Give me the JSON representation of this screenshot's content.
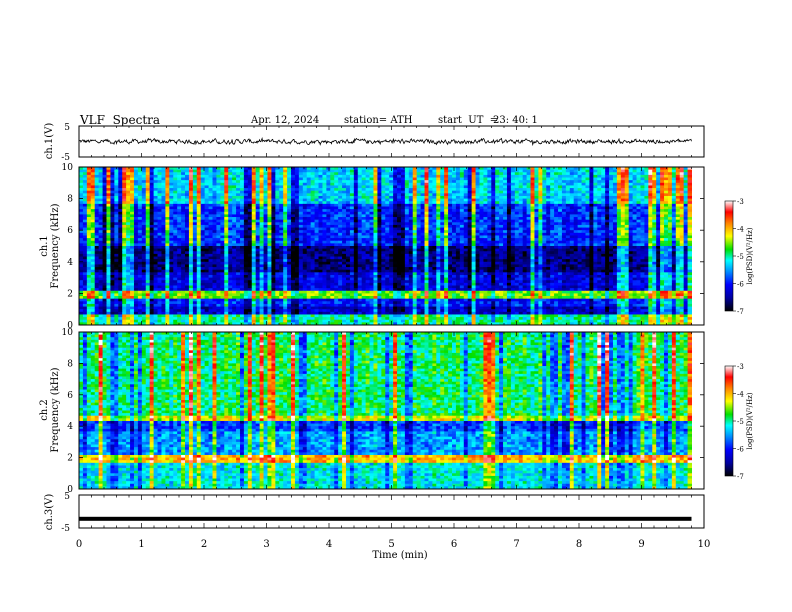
{
  "header": {
    "title": "VLF  Spectra",
    "date": "Apr. 12, 2024",
    "station": "station= ATH",
    "start_label": "start  UT  =",
    "start_time": "23: 40: 1"
  },
  "colors": {
    "colormap": [
      "#000000",
      "#0000a0",
      "#0000ff",
      "#0090ff",
      "#00ffff",
      "#00e000",
      "#ffff00",
      "#ff8000",
      "#ff0000",
      "#ffffff"
    ],
    "waveform": "#000000",
    "axes": "#000000"
  },
  "chart_data": [
    {
      "type": "line",
      "panel": "ch1-waveform",
      "ylabel": "ch.1(V)",
      "ylim": [
        -5,
        5
      ],
      "yticks": [
        "5",
        "-5"
      ],
      "x_range": [
        0,
        9.8
      ],
      "description_value_range": [
        -1,
        1
      ],
      "grid": false
    },
    {
      "type": "heatmap",
      "panel": "ch1-spectrogram",
      "channel_label": "ch.1",
      "ylabel": "Frequency  (kHz)",
      "ylim": [
        0,
        10
      ],
      "yticks": [
        "0",
        "2",
        "4",
        "6",
        "8",
        "10"
      ],
      "x_range": [
        0,
        9.8
      ],
      "noise_bands_khz": [
        {
          "from": 0,
          "to": 0.7,
          "level": -5.0
        },
        {
          "from": 0.7,
          "to": 1.1,
          "level": -6.3
        },
        {
          "from": 1.1,
          "to": 1.7,
          "level": -6.0
        },
        {
          "from": 1.7,
          "to": 2.1,
          "level": -4.6
        },
        {
          "from": 2.1,
          "to": 3.4,
          "level": -6.2
        },
        {
          "from": 3.4,
          "to": 5.0,
          "level": -6.6
        },
        {
          "from": 5.0,
          "to": 7.6,
          "level": -5.9
        },
        {
          "from": 7.6,
          "to": 10,
          "level": -5.3
        }
      ],
      "colorbar": {
        "label": "log(PSD)(V²/Hz)",
        "min": -7,
        "max": -3,
        "ticks": [
          "-3",
          "-4",
          "-5",
          "-6",
          "-7"
        ]
      }
    },
    {
      "type": "heatmap",
      "panel": "ch2-spectrogram",
      "channel_label": "ch.2",
      "ylabel": "Frequency  (kHz)",
      "ylim": [
        0,
        10
      ],
      "yticks": [
        "0",
        "2",
        "4",
        "6",
        "8",
        "10"
      ],
      "x_range": [
        0,
        9.8
      ],
      "noise_bands_khz": [
        {
          "from": 0,
          "to": 1.7,
          "level": -5.2
        },
        {
          "from": 1.7,
          "to": 2.1,
          "level": -4.0
        },
        {
          "from": 2.1,
          "to": 3.6,
          "level": -5.5
        },
        {
          "from": 3.6,
          "to": 4.4,
          "level": -5.8
        },
        {
          "from": 4.4,
          "to": 4.7,
          "level": -4.3
        },
        {
          "from": 4.7,
          "to": 10,
          "level": -4.9
        }
      ],
      "colorbar": {
        "label": "log(PSD)(V²/Hz)",
        "min": -7,
        "max": -3,
        "ticks": [
          "-3",
          "-4",
          "-5",
          "-6",
          "-7"
        ]
      }
    },
    {
      "type": "line",
      "panel": "ch3-waveform",
      "ylabel": "ch.3(V)",
      "ylim": [
        -5,
        5
      ],
      "yticks": [
        "5",
        "-5"
      ],
      "x_range": [
        0,
        9.8
      ],
      "constant_value": -2.2,
      "xlabel": "Time  (min)",
      "xlim": [
        0,
        10
      ],
      "xticks": [
        "0",
        "1",
        "2",
        "3",
        "4",
        "5",
        "6",
        "7",
        "8",
        "9",
        "10"
      ],
      "grid": false
    }
  ]
}
